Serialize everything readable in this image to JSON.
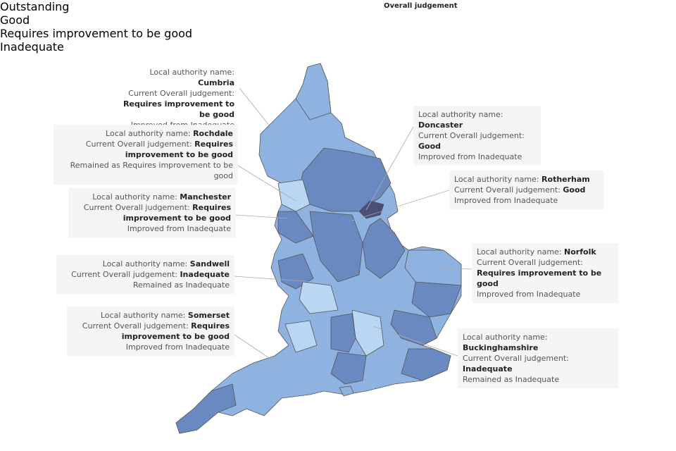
{
  "legend": {
    "title": "Overall judgement",
    "items": [
      {
        "label": "Outstanding",
        "color": "#4b4f78"
      },
      {
        "label": "Good",
        "color": "#6a89c0"
      },
      {
        "label": "Requires improvement to be good",
        "color": "#8fb3e0"
      },
      {
        "label": "Inadequate",
        "color": "#b9d6f2"
      }
    ]
  },
  "annotations": [
    {
      "name_label": "Local authority name:",
      "name": "Cumbria",
      "judgement_label": "Current Overall judgement:",
      "judgement": "Requires improvement to be good",
      "change": "Improved from Inadequate"
    },
    {
      "name_label": "Local authority name:",
      "name": "Rochdale",
      "judgement_label": "Current Overall judgement:",
      "judgement": "Requires improvement to be good",
      "change": "Remained as Requires improvement to be good"
    },
    {
      "name_label": "Local authority name:",
      "name": "Manchester",
      "judgement_label": "Current Overall judgement:",
      "judgement": "Requires improvement to be good",
      "change": "Improved from Inadequate"
    },
    {
      "name_label": "Local authority name:",
      "name": "Sandwell",
      "judgement_label": "Current Overall judgement:",
      "judgement": "Inadequate",
      "change": "Remained  as Inadequate"
    },
    {
      "name_label": "Local authority name:",
      "name": "Somerset",
      "judgement_label": "Current Overall judgement:",
      "judgement": "Requires improvement to be good",
      "change": "Improved from Inadequate"
    },
    {
      "name_label": "Local authority name:",
      "name": "Doncaster",
      "judgement_label": "Current Overall judgement:",
      "judgement": "Good",
      "change": "Improved from Inadequate"
    },
    {
      "name_label": "Local authority name:",
      "name": "Rotherham",
      "judgement_label": "Current Overall judgement:",
      "judgement": "Good",
      "change": "Improved from Inadequate"
    },
    {
      "name_label": "Local authority name:",
      "name": "Norfolk",
      "judgement_label": "Current Overall judgement:",
      "judgement": "Requires improvement to be good",
      "change": "Improved from Inadequate"
    },
    {
      "name_label": "Local authority name:",
      "name": "Buckinghamshire",
      "judgement_label": "Current Overall judgement:",
      "judgement": "Inadequate",
      "change": "Remained as Inadequate"
    }
  ]
}
